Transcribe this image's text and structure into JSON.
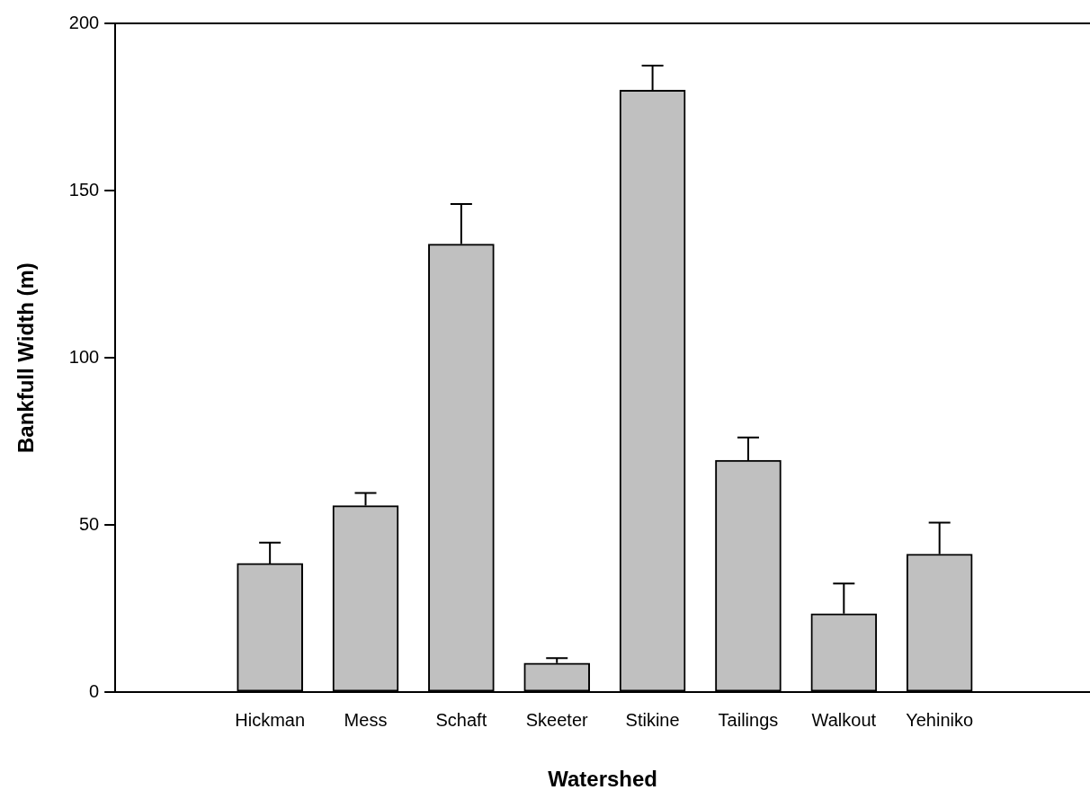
{
  "chart_data": {
    "type": "bar",
    "xlabel": "Watershed",
    "ylabel": "Bankfull Width (m)",
    "categories": [
      "Hickman",
      "Mess",
      "Schaft",
      "Skeeter",
      "Stikine",
      "Tailings",
      "Walkout",
      "Yehiniko"
    ],
    "values": [
      38.5,
      55.8,
      134.0,
      8.7,
      180.0,
      69.4,
      23.5,
      41.3
    ],
    "errors": [
      [
        38.5,
        44.7
      ],
      [
        55.8,
        59.6
      ],
      [
        134.0,
        146.0
      ],
      [
        8.7,
        10.2
      ],
      [
        180.0,
        187.4
      ],
      [
        69.4,
        76.2
      ],
      [
        23.5,
        32.5
      ],
      [
        41.3,
        50.7
      ]
    ],
    "color": "#c0c0c0",
    "ylim": [
      0,
      200
    ],
    "yticks": [
      0,
      50,
      100,
      150,
      200
    ],
    "grid": false,
    "legend": false
  }
}
